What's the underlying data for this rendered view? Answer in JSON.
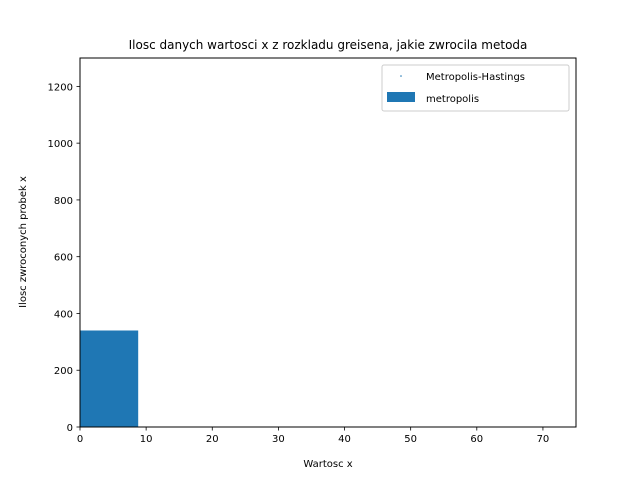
{
  "chart_data": {
    "type": "bar",
    "title": "Ilosc danych wartosci x z rozkladu greisena, jakie zwrocila metoda",
    "xlabel": "Wartosc x",
    "ylabel": "Ilosc zwroconych probek x",
    "xlim": [
      0,
      75
    ],
    "ylim": [
      0,
      1300
    ],
    "xticks": [
      0,
      10,
      20,
      30,
      40,
      50,
      60,
      70
    ],
    "yticks": [
      0,
      200,
      400,
      600,
      800,
      1000,
      1200
    ],
    "grid": false,
    "legend_position": "top-right",
    "legend": [
      {
        "label": "Metropolis-Hastings",
        "kind": "point"
      },
      {
        "label": "metropolis",
        "kind": "bar"
      }
    ],
    "bars": [
      {
        "x0": 0,
        "x1": 8.8,
        "value": 340
      }
    ],
    "colors": {
      "bar": "#1f77b4",
      "point": "#1f77b4",
      "axes": "#000000"
    }
  }
}
